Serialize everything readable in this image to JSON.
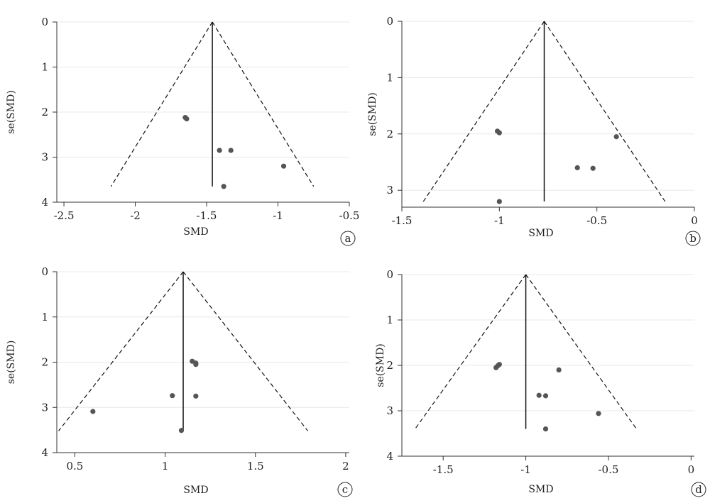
{
  "chart_data": [
    {
      "type": "scatter",
      "panel_label": "a",
      "xlabel": "SMD",
      "ylabel": "se(SMD)",
      "xlim": [
        -2.55,
        -0.5
      ],
      "ylim": [
        0,
        4
      ],
      "y_reversed": true,
      "xticks": [
        -2.5,
        -2,
        -1.5,
        -1,
        -0.5
      ],
      "xtick_labels": [
        "-2.5",
        "-2",
        "-1.5",
        "-1",
        "-0.5"
      ],
      "yticks": [
        0,
        1,
        2,
        3,
        4
      ],
      "ytick_labels": [
        "0",
        "1",
        "2",
        "3",
        "4"
      ],
      "pooled_smd": -1.46,
      "funnel_max_se": 3.65,
      "points": [
        {
          "x": -1.65,
          "y": 2.12
        },
        {
          "x": -1.64,
          "y": 2.15
        },
        {
          "x": -1.41,
          "y": 2.85
        },
        {
          "x": -1.33,
          "y": 2.85
        },
        {
          "x": -0.96,
          "y": 3.2
        },
        {
          "x": -1.38,
          "y": 3.65
        }
      ],
      "grid": true
    },
    {
      "type": "scatter",
      "panel_label": "b",
      "xlabel": "SMD",
      "ylabel": "se(SMD)",
      "xlim": [
        -1.5,
        0
      ],
      "ylim": [
        0,
        3.3
      ],
      "y_reversed": true,
      "xticks": [
        -1.5,
        -1,
        -0.5,
        0
      ],
      "xtick_labels": [
        "-1.5",
        "-1",
        "-0.5",
        "0"
      ],
      "yticks": [
        0,
        1,
        2,
        3
      ],
      "ytick_labels": [
        "0",
        "1",
        "2",
        "3"
      ],
      "pooled_smd": -0.77,
      "funnel_max_se": 3.2,
      "points": [
        {
          "x": -1.01,
          "y": 1.95
        },
        {
          "x": -1.0,
          "y": 1.98
        },
        {
          "x": -0.4,
          "y": 2.05
        },
        {
          "x": -0.6,
          "y": 2.6
        },
        {
          "x": -0.52,
          "y": 2.61
        },
        {
          "x": -1.0,
          "y": 3.2
        }
      ],
      "grid": true
    },
    {
      "type": "scatter",
      "panel_label": "c",
      "xlabel": "SMD",
      "ylabel": "se(SMD)",
      "xlim": [
        0.4,
        2.02
      ],
      "ylim": [
        0,
        4
      ],
      "y_reversed": true,
      "xticks": [
        0.5,
        1,
        1.5,
        2
      ],
      "xtick_labels": [
        "0.5",
        "1",
        "1.5",
        "2"
      ],
      "yticks": [
        0,
        1,
        2,
        3,
        4
      ],
      "ytick_labels": [
        "0",
        "1",
        "2",
        "3",
        "4"
      ],
      "pooled_smd": 1.1,
      "funnel_max_se": 3.52,
      "points": [
        {
          "x": 1.15,
          "y": 1.98
        },
        {
          "x": 1.17,
          "y": 2.02
        },
        {
          "x": 1.17,
          "y": 2.05
        },
        {
          "x": 1.04,
          "y": 2.74
        },
        {
          "x": 1.17,
          "y": 2.75
        },
        {
          "x": 0.6,
          "y": 3.09
        },
        {
          "x": 1.09,
          "y": 3.51
        }
      ],
      "grid": true
    },
    {
      "type": "scatter",
      "panel_label": "d",
      "xlabel": "SMD",
      "ylabel": "se(SMD)",
      "xlim": [
        -1.75,
        0.02
      ],
      "ylim": [
        0,
        4
      ],
      "y_reversed": true,
      "xticks": [
        -1.5,
        -1,
        -0.5,
        0
      ],
      "xtick_labels": [
        "-1.5",
        "-1",
        "-0.5",
        "0"
      ],
      "yticks": [
        0,
        1,
        2,
        3,
        4
      ],
      "ytick_labels": [
        "0",
        "1",
        "2",
        "3",
        "4"
      ],
      "pooled_smd": -1.0,
      "funnel_max_se": 3.4,
      "points": [
        {
          "x": -1.16,
          "y": 1.98
        },
        {
          "x": -1.17,
          "y": 2.01
        },
        {
          "x": -1.18,
          "y": 2.05
        },
        {
          "x": -0.8,
          "y": 2.1
        },
        {
          "x": -0.92,
          "y": 2.66
        },
        {
          "x": -0.88,
          "y": 2.67
        },
        {
          "x": -0.56,
          "y": 3.06
        },
        {
          "x": -0.88,
          "y": 3.4
        }
      ],
      "grid": true
    }
  ]
}
